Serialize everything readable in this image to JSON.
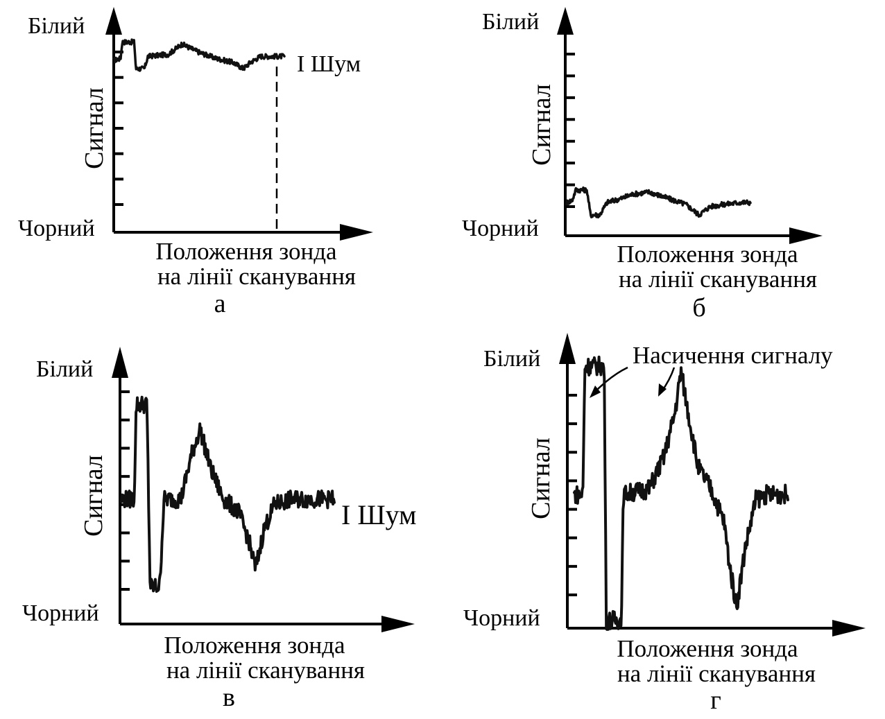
{
  "chart_data": [
    {
      "panel": "а",
      "type": "line",
      "ylabel": "Сигнал",
      "y_top_label": "Білий",
      "y_bottom_label": "Чорний",
      "xlabel_line1": "Положення зонда",
      "xlabel_line2": "на лінії сканування",
      "annotation": "I Шум",
      "ylim": [
        0,
        1
      ],
      "y_ticks": 7,
      "noise": 0.012,
      "points": [
        [
          0,
          0.84
        ],
        [
          0.04,
          0.85
        ],
        [
          0.05,
          0.93
        ],
        [
          0.12,
          0.93
        ],
        [
          0.13,
          0.8
        ],
        [
          0.18,
          0.8
        ],
        [
          0.2,
          0.86
        ],
        [
          0.32,
          0.87
        ],
        [
          0.4,
          0.92
        ],
        [
          0.5,
          0.88
        ],
        [
          0.6,
          0.85
        ],
        [
          0.7,
          0.83
        ],
        [
          0.76,
          0.8
        ],
        [
          0.8,
          0.83
        ],
        [
          0.86,
          0.86
        ],
        [
          0.95,
          0.86
        ],
        [
          1.0,
          0.86
        ]
      ]
    },
    {
      "panel": "б",
      "type": "line",
      "ylabel": "Сигнал",
      "y_top_label": "Білий",
      "y_bottom_label": "Чорний",
      "xlabel_line1": "Положення зонда",
      "xlabel_line2": "на лінії сканування",
      "annotation": "",
      "ylim": [
        0,
        1
      ],
      "y_ticks": 8,
      "noise": 0.012,
      "points": [
        [
          0,
          0.16
        ],
        [
          0.03,
          0.17
        ],
        [
          0.05,
          0.22
        ],
        [
          0.11,
          0.22
        ],
        [
          0.13,
          0.1
        ],
        [
          0.18,
          0.1
        ],
        [
          0.22,
          0.16
        ],
        [
          0.3,
          0.18
        ],
        [
          0.36,
          0.2
        ],
        [
          0.45,
          0.21
        ],
        [
          0.55,
          0.18
        ],
        [
          0.65,
          0.15
        ],
        [
          0.72,
          0.1
        ],
        [
          0.78,
          0.14
        ],
        [
          0.85,
          0.15
        ],
        [
          0.95,
          0.16
        ],
        [
          1.0,
          0.16
        ]
      ]
    },
    {
      "panel": "в",
      "type": "line",
      "ylabel": "Сигнал",
      "y_top_label": "Білий",
      "y_bottom_label": "Чорний",
      "xlabel_line1": "Положення зонда",
      "xlabel_line2": "на лінії сканування",
      "annotation": "I Шум",
      "ylim": [
        0,
        1
      ],
      "y_ticks": 8,
      "noise": 0.035,
      "points": [
        [
          0,
          0.5
        ],
        [
          0.06,
          0.5
        ],
        [
          0.07,
          0.88
        ],
        [
          0.12,
          0.88
        ],
        [
          0.135,
          0.15
        ],
        [
          0.18,
          0.15
        ],
        [
          0.2,
          0.5
        ],
        [
          0.28,
          0.5
        ],
        [
          0.33,
          0.68
        ],
        [
          0.37,
          0.78
        ],
        [
          0.42,
          0.62
        ],
        [
          0.48,
          0.5
        ],
        [
          0.55,
          0.45
        ],
        [
          0.6,
          0.33
        ],
        [
          0.63,
          0.22
        ],
        [
          0.67,
          0.38
        ],
        [
          0.72,
          0.48
        ],
        [
          0.8,
          0.5
        ],
        [
          1.0,
          0.5
        ]
      ]
    },
    {
      "panel": "г",
      "type": "line",
      "ylabel": "Сигнал",
      "y_top_label": "Білий",
      "y_bottom_label": "Чорний",
      "xlabel_line1": "Положення зонда",
      "xlabel_line2": "на лінії сканування",
      "annotation": "Насичення сигналу",
      "ylim": [
        0,
        1
      ],
      "y_ticks": 8,
      "noise": 0.035,
      "points": [
        [
          0,
          0.5
        ],
        [
          0.04,
          0.5
        ],
        [
          0.05,
          0.98
        ],
        [
          0.14,
          0.98
        ],
        [
          0.15,
          0.03
        ],
        [
          0.22,
          0.03
        ],
        [
          0.23,
          0.5
        ],
        [
          0.35,
          0.52
        ],
        [
          0.42,
          0.64
        ],
        [
          0.47,
          0.8
        ],
        [
          0.5,
          0.96
        ],
        [
          0.53,
          0.82
        ],
        [
          0.58,
          0.6
        ],
        [
          0.64,
          0.52
        ],
        [
          0.7,
          0.4
        ],
        [
          0.73,
          0.22
        ],
        [
          0.76,
          0.08
        ],
        [
          0.8,
          0.3
        ],
        [
          0.85,
          0.48
        ],
        [
          0.9,
          0.5
        ],
        [
          1.0,
          0.5
        ]
      ]
    }
  ]
}
